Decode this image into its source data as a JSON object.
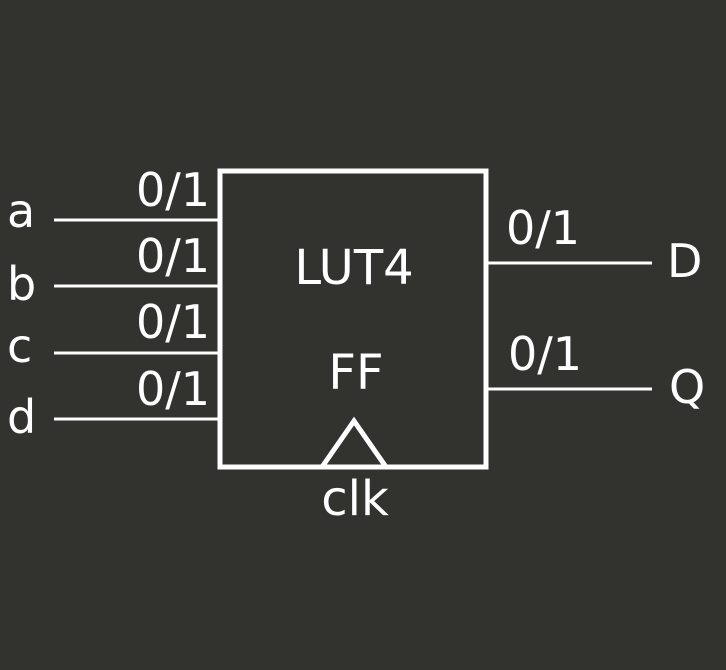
{
  "colors": {
    "background": "#32332f",
    "foreground": "#ffffff"
  },
  "block": {
    "lut_label": "LUT4",
    "ff_label": "FF",
    "clock_label": "clk"
  },
  "inputs": [
    {
      "name": "a",
      "value": "0/1"
    },
    {
      "name": "b",
      "value": "0/1"
    },
    {
      "name": "c",
      "value": "0/1"
    },
    {
      "name": "d",
      "value": "0/1"
    }
  ],
  "outputs": [
    {
      "name": "D",
      "value": "0/1"
    },
    {
      "name": "Q",
      "value": "0/1"
    }
  ]
}
